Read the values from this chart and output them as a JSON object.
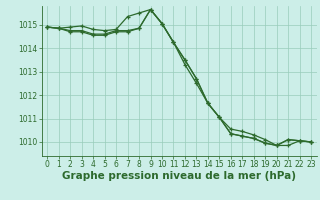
{
  "xlabel": "Graphe pression niveau de la mer (hPa)",
  "background_color": "#cceee8",
  "grid_color": "#99ccbb",
  "line_color": "#2d6a2d",
  "ylim": [
    1009.4,
    1015.8
  ],
  "yticks": [
    1010,
    1011,
    1012,
    1013,
    1014,
    1015
  ],
  "xlim": [
    -0.5,
    23.5
  ],
  "xticks": [
    0,
    1,
    2,
    3,
    4,
    5,
    6,
    7,
    8,
    9,
    10,
    11,
    12,
    13,
    14,
    15,
    16,
    17,
    18,
    19,
    20,
    21,
    22,
    23
  ],
  "series": [
    {
      "x": [
        0,
        1,
        2,
        3,
        4,
        5,
        6,
        7,
        8,
        9,
        10,
        11,
        12,
        13,
        14,
        15,
        16,
        17,
        18,
        19,
        20,
        21,
        22,
        23
      ],
      "y": [
        1014.9,
        1014.85,
        1014.9,
        1014.95,
        1014.8,
        1014.75,
        1014.8,
        1015.35,
        1015.5,
        1015.65,
        1015.05,
        1014.25,
        1013.5,
        1012.7,
        1011.65,
        1011.05,
        1010.35,
        1010.25,
        1010.15,
        1009.95,
        1009.85,
        1010.1,
        1010.05,
        1010.0
      ]
    },
    {
      "x": [
        0,
        1,
        2,
        3,
        4,
        5,
        6,
        7,
        8,
        9,
        10,
        11,
        12,
        13,
        14,
        15,
        16,
        17,
        18,
        19,
        20,
        21,
        22,
        23
      ],
      "y": [
        1014.9,
        1014.85,
        1014.75,
        1014.75,
        1014.6,
        1014.6,
        1014.75,
        1014.75,
        1014.85,
        1015.65,
        1015.05,
        1014.25,
        1013.5,
        1012.7,
        1011.65,
        1011.05,
        1010.35,
        1010.25,
        1010.15,
        1009.95,
        1009.85,
        1010.1,
        1010.05,
        1010.0
      ]
    },
    {
      "x": [
        0,
        1,
        2,
        3,
        4,
        5,
        6,
        7,
        8,
        9,
        10,
        11,
        12,
        13,
        14,
        15,
        16,
        17,
        18,
        19,
        20,
        21,
        22,
        23
      ],
      "y": [
        1014.9,
        1014.85,
        1014.7,
        1014.7,
        1014.55,
        1014.55,
        1014.7,
        1014.7,
        1014.85,
        1015.65,
        1015.05,
        1014.25,
        1013.3,
        1012.5,
        1011.65,
        1011.05,
        1010.55,
        1010.45,
        1010.3,
        1010.1,
        1009.85,
        1009.85,
        1010.05,
        1010.0
      ]
    }
  ],
  "title_fontsize": 7.5,
  "tick_fontsize": 5.5,
  "tick_color": "#2d6a2d",
  "axis_color": "#2d6a2d",
  "label_fontsize": 7.5
}
